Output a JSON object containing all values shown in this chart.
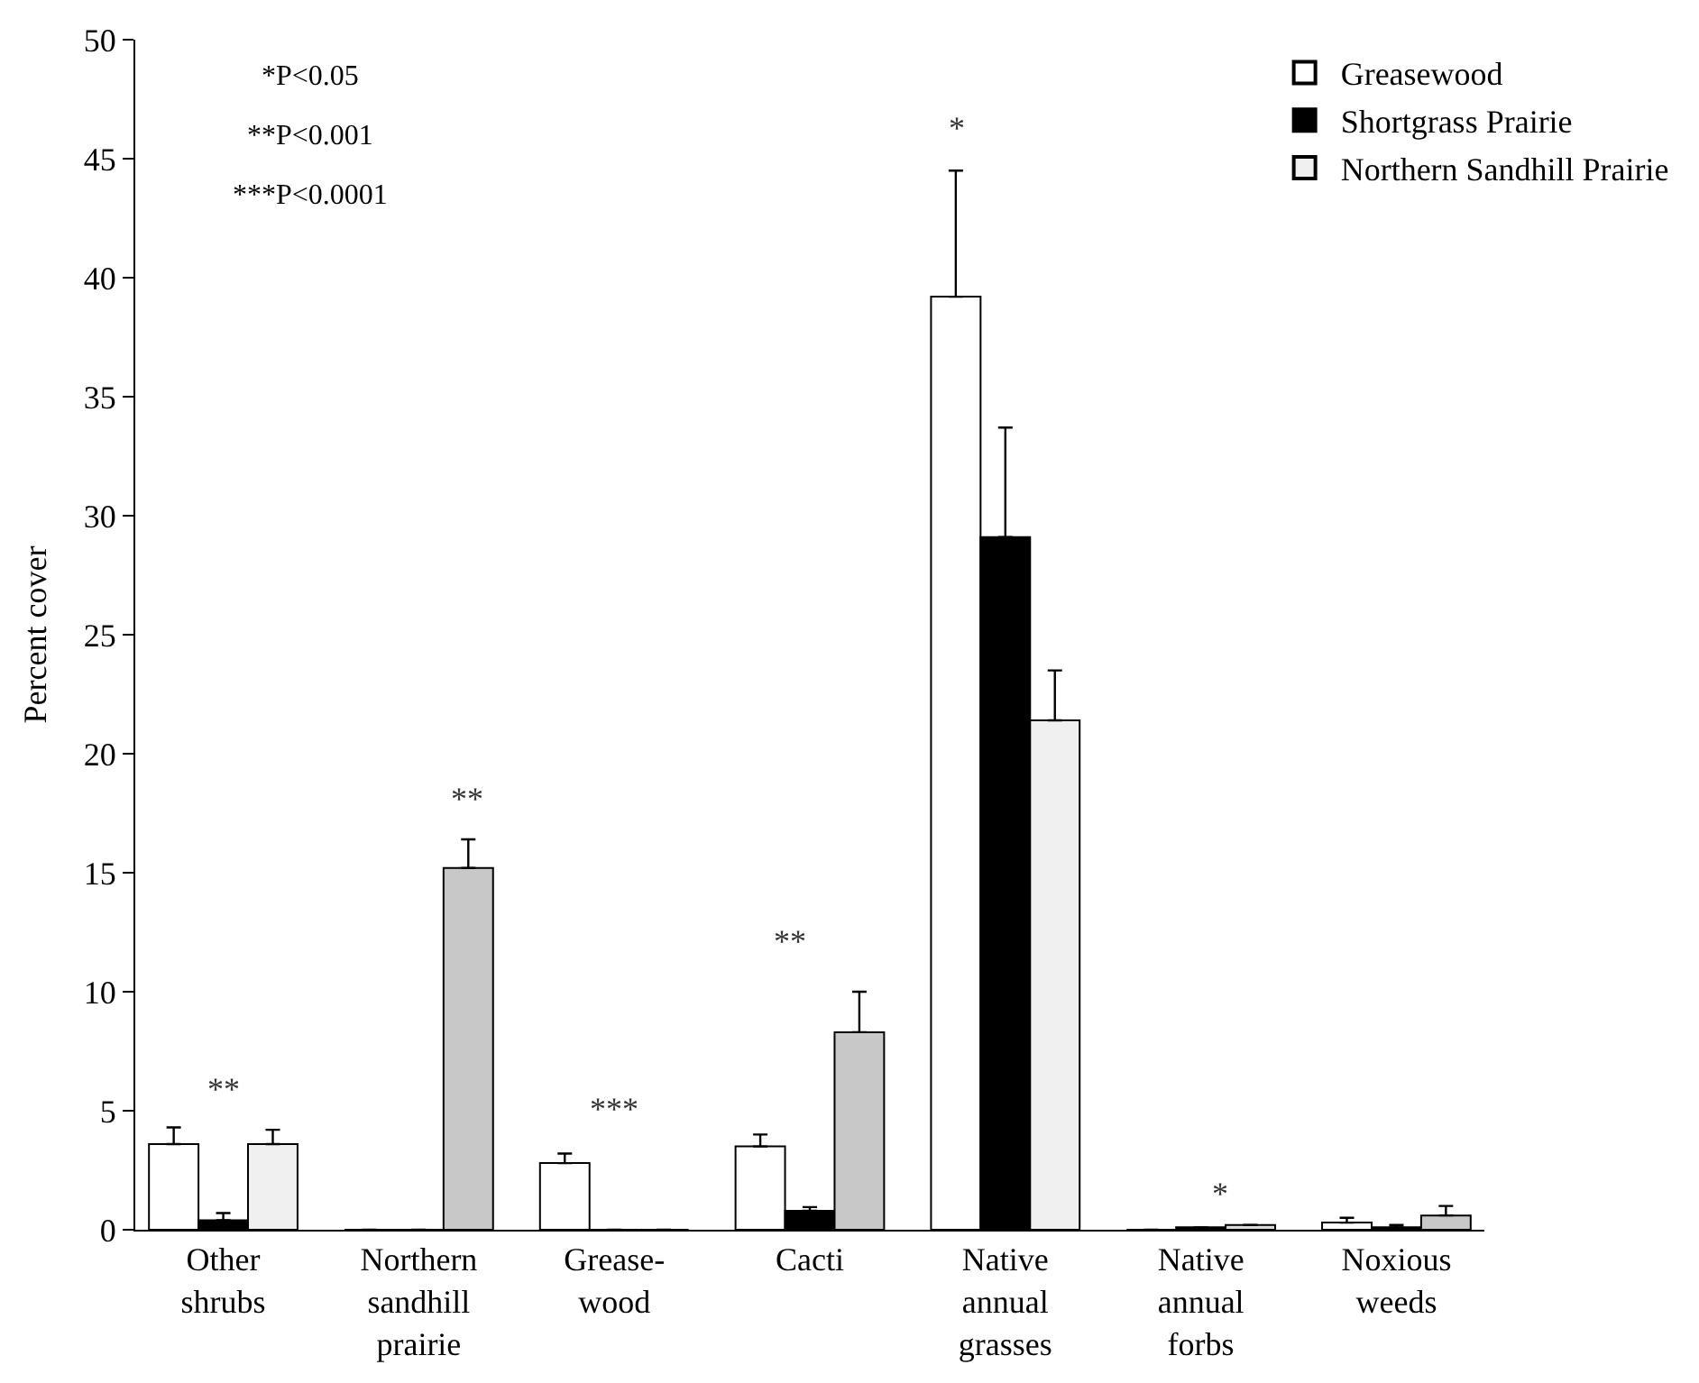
{
  "chart_data": {
    "type": "bar",
    "ylabel": "Percent cover",
    "categories": [
      "Other\nshrubs",
      "Northern\nsandhill\nprairie",
      "Grease-\nwood",
      "Cacti",
      "Native\nannual\ngrasses",
      "Native\nannual\nforbs",
      "Noxious\nweeds"
    ],
    "series": [
      {
        "name": "Greasewood",
        "color": "#ffffff",
        "values": [
          3.6,
          0,
          2.8,
          3.5,
          39.2,
          0,
          0.3
        ],
        "errors": [
          [
            3.6,
            4.3
          ],
          null,
          [
            2.8,
            3.2
          ],
          [
            3.5,
            4.0
          ],
          [
            39.2,
            44.5
          ],
          null,
          [
            0.3,
            0.5
          ]
        ]
      },
      {
        "name": "Shortgrass Prairie",
        "color": "#000000",
        "values": [
          0.4,
          0,
          0,
          0.8,
          29.1,
          0.1,
          0.1
        ],
        "errors": [
          [
            0.4,
            0.7
          ],
          null,
          null,
          [
            0.8,
            0.95
          ],
          [
            29.1,
            33.7
          ],
          null,
          [
            0.1,
            0.2
          ]
        ]
      },
      {
        "name": "Northern Sandhill Prairie",
        "color": "#c8c8c8",
        "colors": [
          "#f0f0f0",
          "#c8c8c8",
          "#c8c8c8",
          "#c8c8c8",
          "#f0f0f0",
          "#dcdcdc",
          "#c8c8c8"
        ],
        "values": [
          3.6,
          15.2,
          0,
          8.3,
          21.4,
          0.2,
          0.6
        ],
        "errors": [
          [
            3.6,
            4.2
          ],
          [
            15.2,
            16.4
          ],
          null,
          [
            8.3,
            10.0
          ],
          [
            21.4,
            23.5
          ],
          null,
          [
            0.6,
            1.0
          ]
        ]
      }
    ],
    "ylim": [
      0,
      50
    ],
    "yticks": [
      0,
      5,
      10,
      15,
      20,
      25,
      30,
      35,
      40,
      45,
      50
    ],
    "legend": "top right",
    "annotations": [
      "*P<0.05",
      "**P<0.001",
      "***P<0.0001",
      "**",
      "**",
      "***",
      "**",
      "*",
      "*"
    ]
  }
}
